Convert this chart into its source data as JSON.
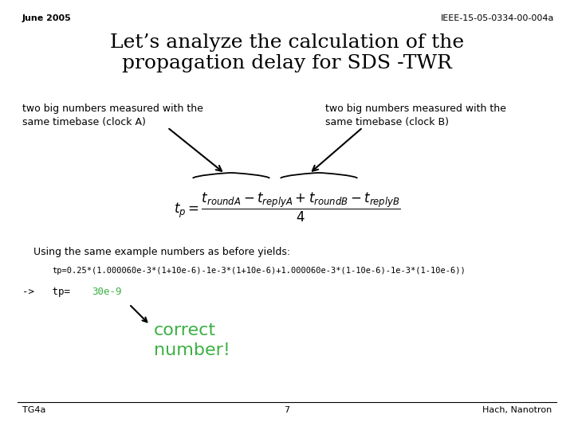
{
  "bg_color": "#ffffff",
  "header_left": "June 2005",
  "header_right": "IEEE-15-05-0334-00-004a",
  "title_line1": "Let’s analyze the calculation of the",
  "title_line2": "propagation delay for SDS -TWR",
  "label_left": "two big numbers measured with the\nsame timebase (clock A)",
  "label_right": "two big numbers measured with the\nsame timebase (clock B)",
  "formula": "$t_p = \\dfrac{t_{roundA} - t_{replyA} + t_{roundB} - t_{replyB}}{4}$",
  "using_text": "Using the same example numbers as before yields:",
  "calc_text": "tp=0.25*(1.000060e-3*(1+10e-6)-1e-3*(1+10e-6)+1.000060e-3*(1-10e-6)-1e-3*(1-10e-6))",
  "arrow_prefix": "->   tp= ",
  "result_value": "30e-9",
  "correct_line1": "correct",
  "correct_line2": "number!",
  "footer_left": "TG4a",
  "footer_center": "7",
  "footer_right": "Hach, Nanotron",
  "text_color": "#000000",
  "green_color": "#3cb043",
  "header_fontsize": 8,
  "title_fontsize": 18,
  "body_fontsize": 9,
  "small_fontsize": 8,
  "correct_fontsize": 16,
  "footer_fontsize": 8
}
